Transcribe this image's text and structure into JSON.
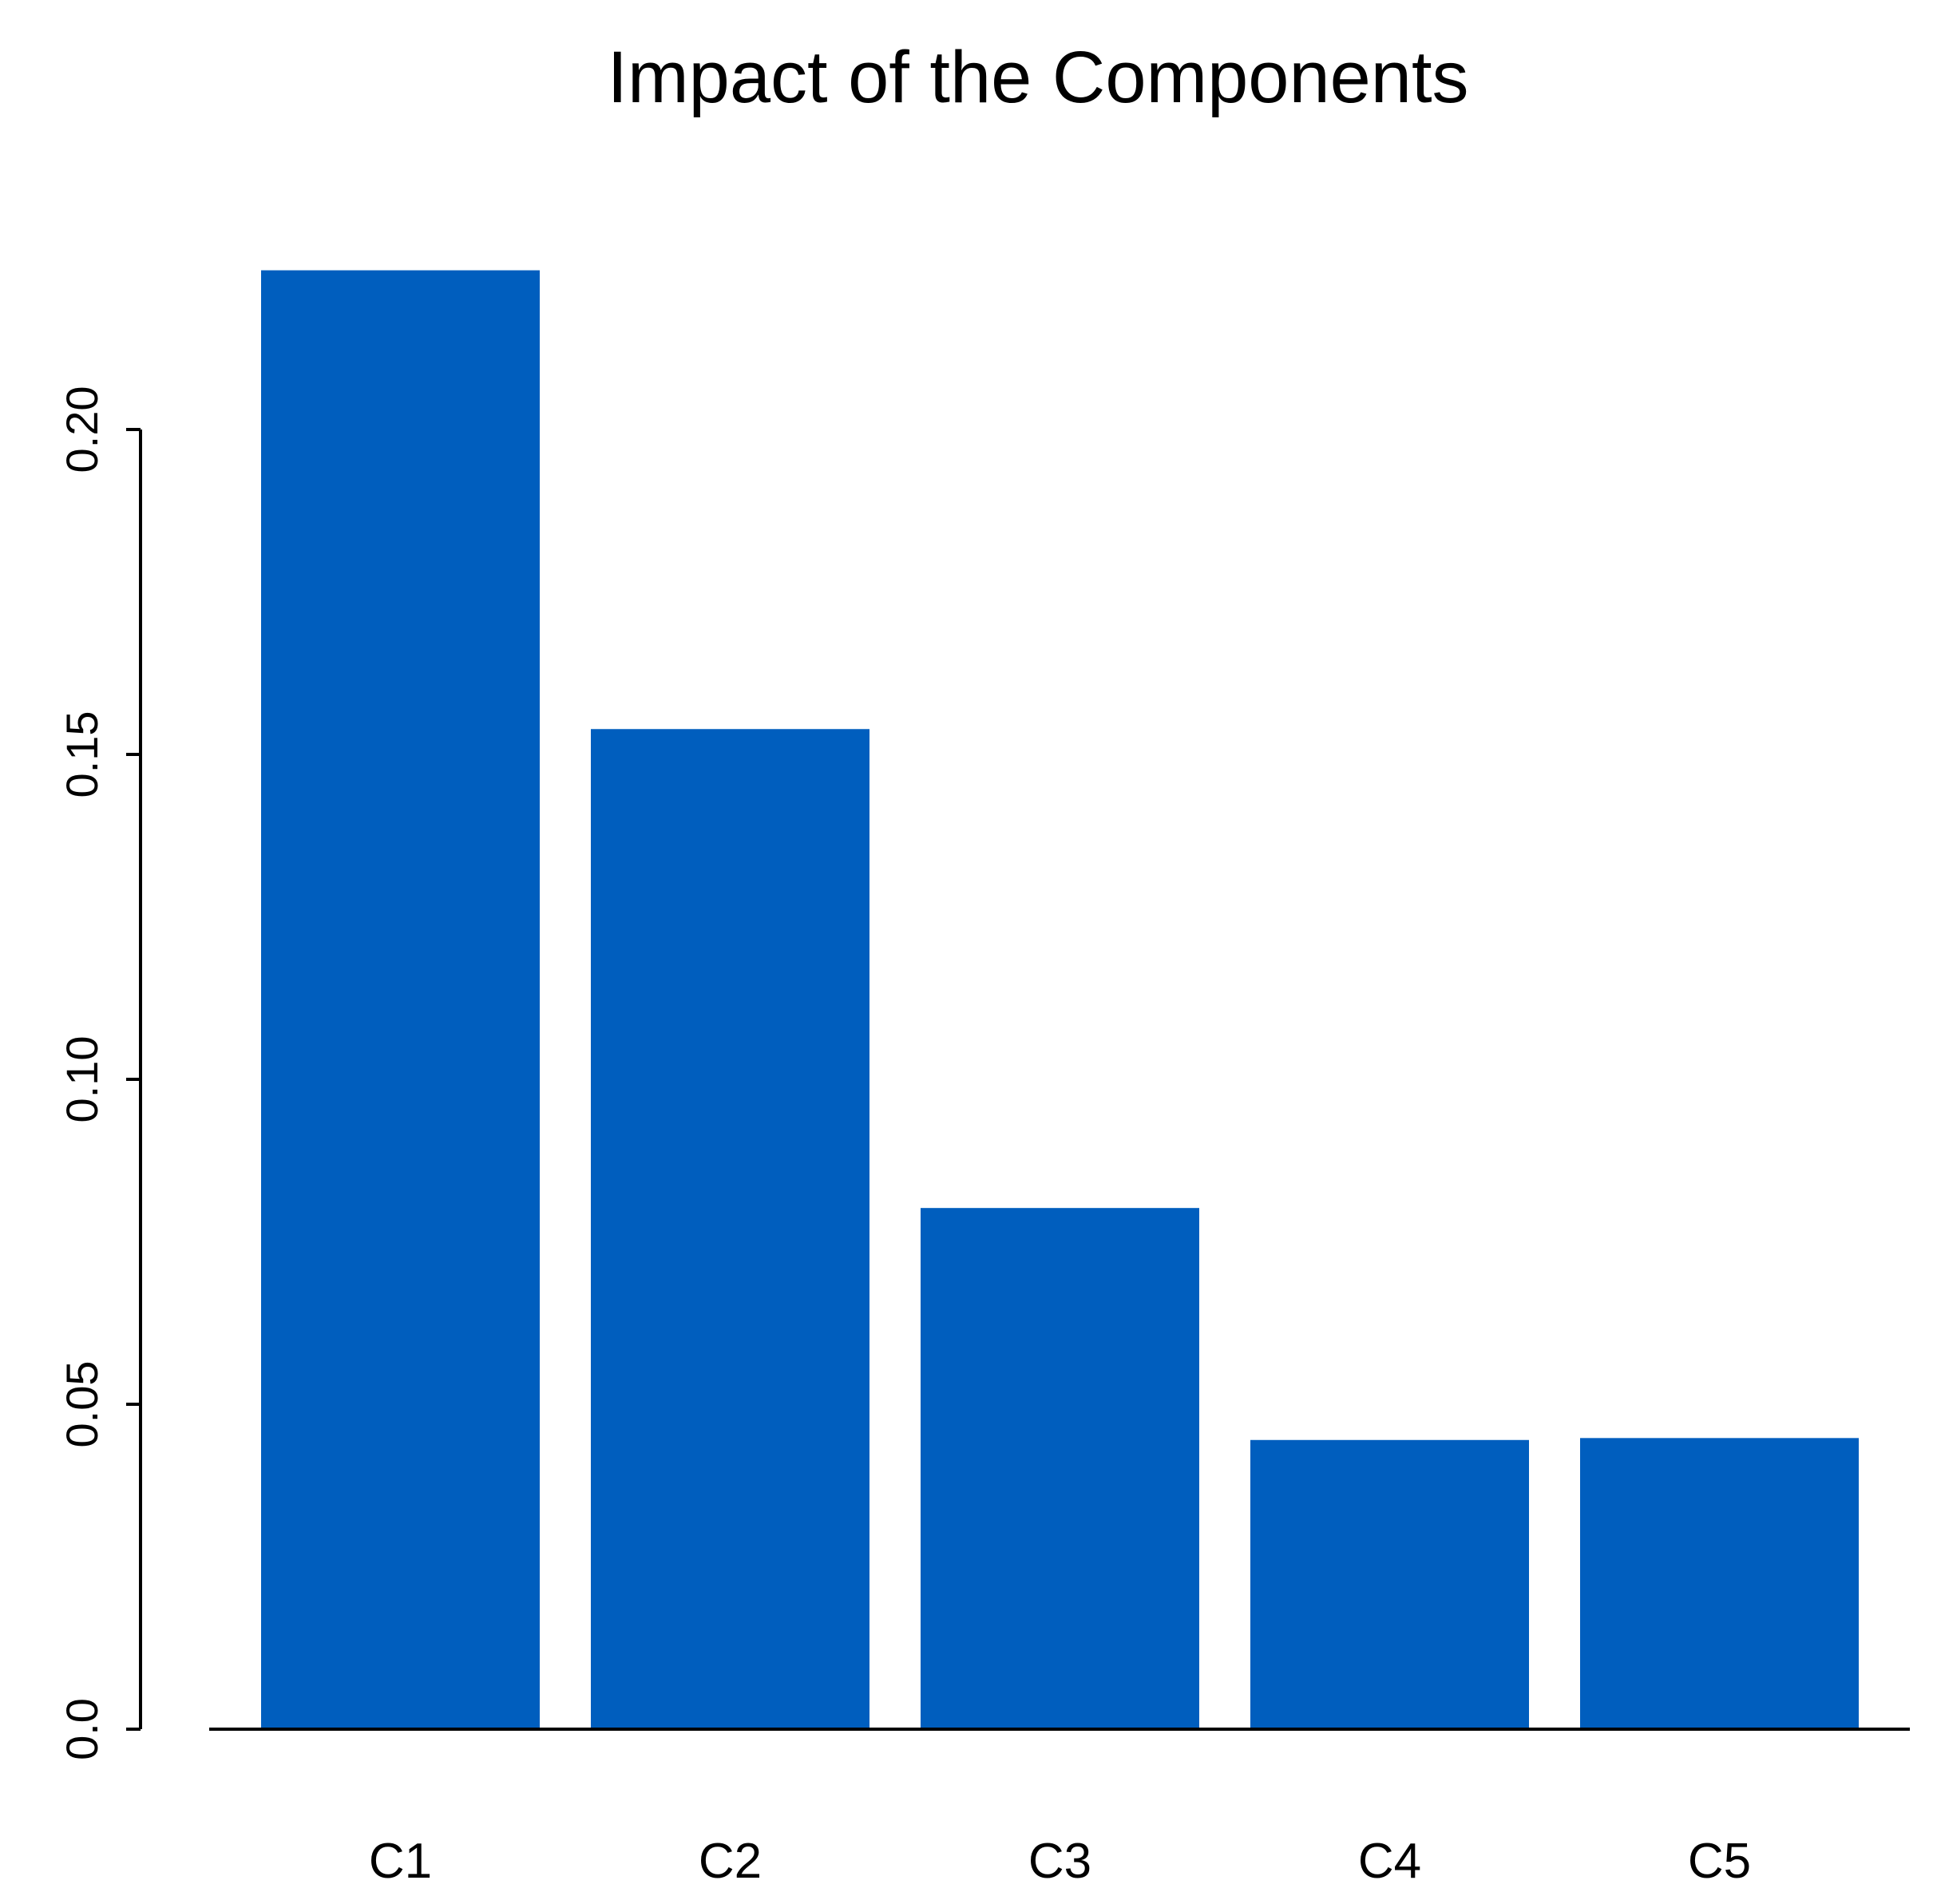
{
  "chart_data": {
    "type": "bar",
    "title": "Impact of the Components",
    "xlabel": "",
    "ylabel": "",
    "categories": [
      "C1",
      "C2",
      "C3",
      "C4",
      "C5"
    ],
    "values": [
      0.2245,
      0.1539,
      0.0802,
      0.0445,
      0.0448
    ],
    "ylim": [
      0,
      0.2
    ],
    "yticks": [
      0.0,
      0.05,
      0.1,
      0.15,
      0.2
    ],
    "ytick_labels": [
      "0.0",
      "0.05",
      "0.10",
      "0.15",
      "0.20"
    ],
    "bar_color": "#005EBE",
    "grid": false,
    "legend": "none"
  }
}
